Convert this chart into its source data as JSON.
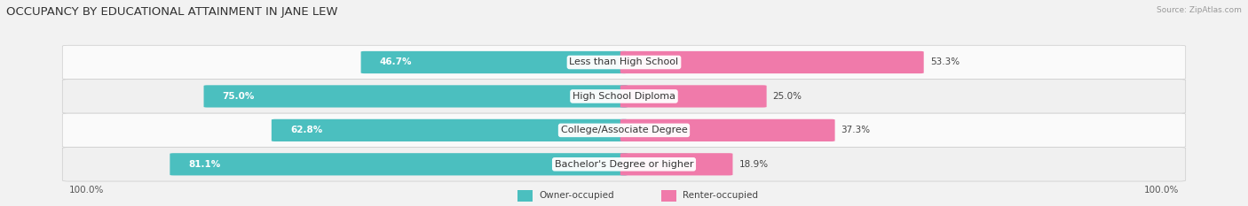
{
  "title": "OCCUPANCY BY EDUCATIONAL ATTAINMENT IN JANE LEW",
  "source": "Source: ZipAtlas.com",
  "categories": [
    "Less than High School",
    "High School Diploma",
    "College/Associate Degree",
    "Bachelor's Degree or higher"
  ],
  "owner_pct": [
    46.7,
    75.0,
    62.8,
    81.1
  ],
  "renter_pct": [
    53.3,
    25.0,
    37.3,
    18.9
  ],
  "owner_color": "#4bbfbf",
  "renter_color": "#f07aaa",
  "bg_color": "#f2f2f2",
  "bar_bg_color": "#e8e8e8",
  "row_bg_light": "#fafafa",
  "row_bg_dark": "#f0f0f0",
  "title_fontsize": 9.5,
  "label_fontsize": 8,
  "pct_fontsize": 7.5,
  "bar_height": 0.62,
  "figsize": [
    14.06,
    2.33
  ],
  "dpi": 100
}
